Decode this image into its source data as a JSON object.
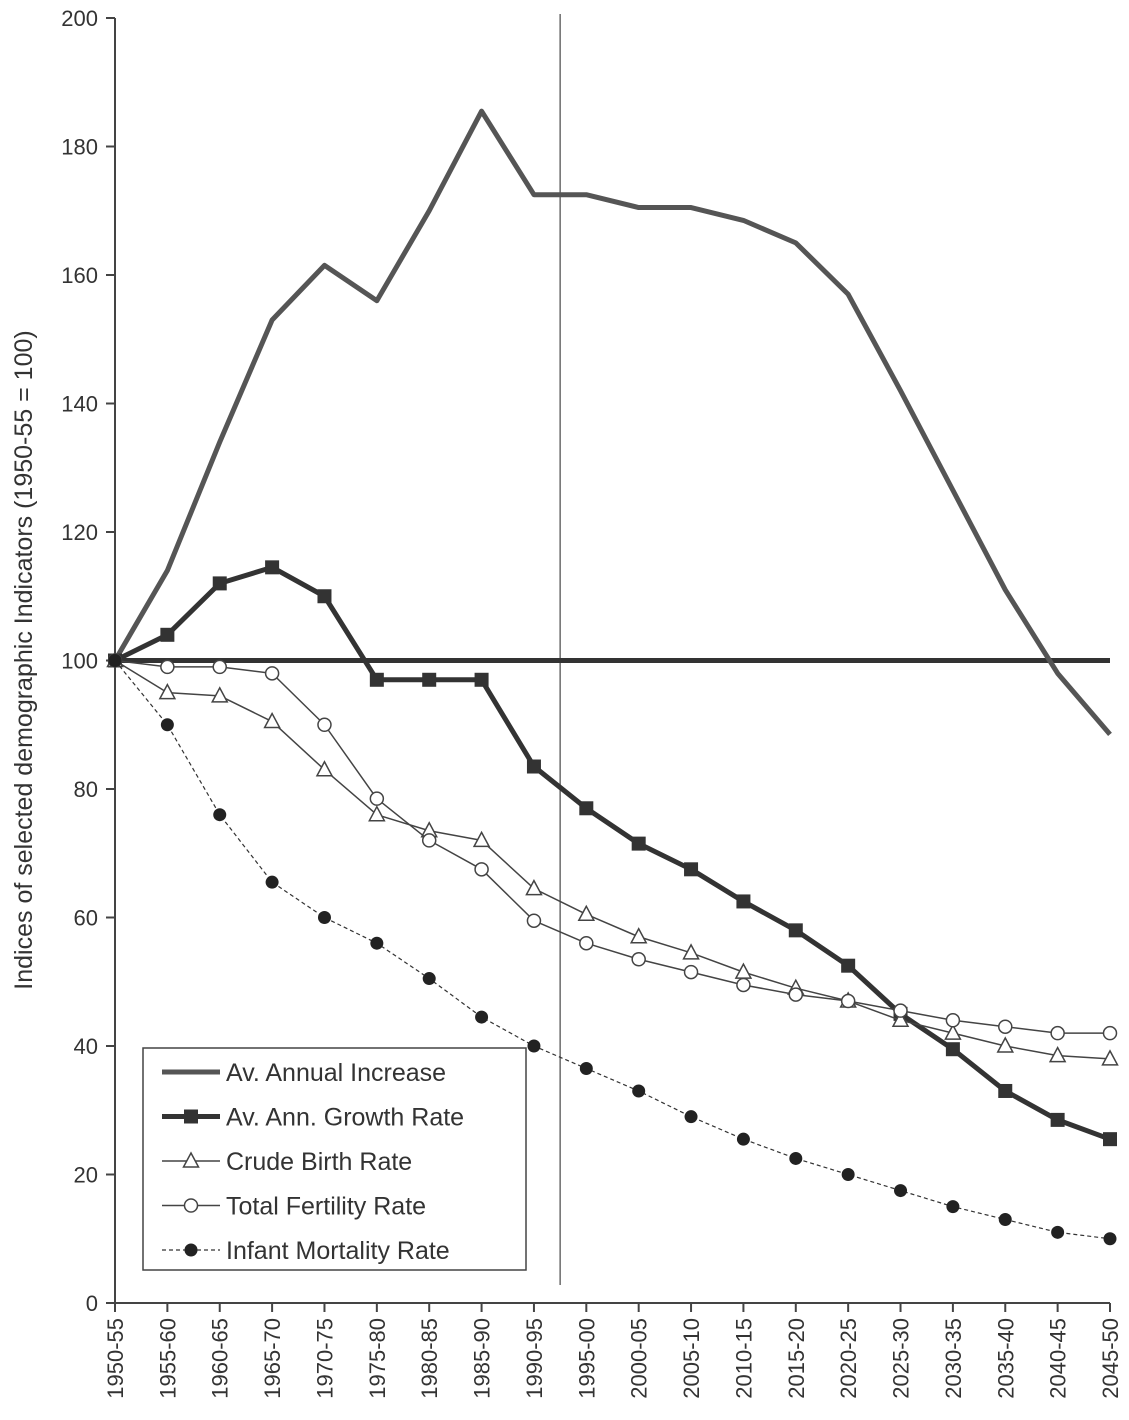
{
  "chart_data": {
    "type": "line",
    "title": "",
    "xlabel": "",
    "ylabel": "Indices of selected demographic Indicators (1950-55 = 100)",
    "ylim": [
      0,
      200
    ],
    "yticks": [
      0,
      20,
      40,
      60,
      80,
      100,
      120,
      140,
      160,
      180,
      200
    ],
    "categories": [
      "1950-55",
      "1955-60",
      "1960-65",
      "1965-70",
      "1970-75",
      "1975-80",
      "1980-85",
      "1985-90",
      "1990-95",
      "1995-00",
      "2000-05",
      "2005-10",
      "2010-15",
      "2015-20",
      "2020-25",
      "2025-30",
      "2030-35",
      "2035-40",
      "2040-45",
      "2045-50"
    ],
    "reference_line": 100,
    "projection_divider_after": "1990-95",
    "grid": false,
    "legend_position": "bottom-left",
    "series": [
      {
        "name": "Av. Annual Increase",
        "color": "#555555",
        "marker": "none",
        "values": [
          100,
          114,
          134,
          153,
          161.5,
          156,
          170,
          185.5,
          172.5,
          172.5,
          170.5,
          170.5,
          168.5,
          165,
          157,
          142,
          126.5,
          111,
          98,
          88.5
        ]
      },
      {
        "name": "Av. Ann. Growth Rate",
        "color": "#333333",
        "marker": "filled-square",
        "values": [
          100,
          104,
          112,
          114.5,
          110,
          97,
          97,
          97,
          83.5,
          77,
          71.5,
          67.5,
          62.5,
          58,
          52.5,
          45,
          39.5,
          33,
          28.5,
          25.5
        ]
      },
      {
        "name": "Crude Birth Rate",
        "color": "#444444",
        "marker": "open-triangle",
        "values": [
          100,
          95,
          94.5,
          90.5,
          83,
          76,
          73.5,
          72,
          64.5,
          60.5,
          57,
          54.5,
          51.5,
          49,
          47,
          44,
          42,
          40,
          38.5,
          38
        ]
      },
      {
        "name": "Total Fertility Rate",
        "color": "#444444",
        "marker": "open-circle",
        "values": [
          100,
          99,
          99,
          98,
          90,
          78.5,
          72,
          67.5,
          59.5,
          56,
          53.5,
          51.5,
          49.5,
          48,
          47,
          45.5,
          44,
          43,
          42,
          42
        ]
      },
      {
        "name": "Infant Mortality Rate",
        "color": "#333333",
        "marker": "filled-circle",
        "values": [
          100,
          90,
          76,
          65.5,
          60,
          56,
          50.5,
          44.5,
          40,
          36.5,
          33,
          29,
          25.5,
          22.5,
          20,
          17.5,
          15,
          13,
          11,
          10
        ]
      }
    ]
  }
}
